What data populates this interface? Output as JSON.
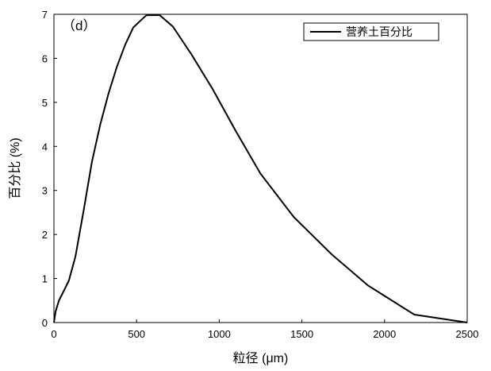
{
  "chart_data": {
    "type": "line",
    "panel_label": "（d）",
    "xlabel": "粒径 (μm)",
    "ylabel": "百分比 (%)",
    "xlim": [
      0,
      2500
    ],
    "ylim": [
      0,
      7
    ],
    "xticks": [
      0,
      500,
      1000,
      1500,
      2000,
      2500
    ],
    "yticks": [
      0,
      1,
      2,
      3,
      4,
      5,
      6,
      7
    ],
    "grid": false,
    "legend_position": "top-right",
    "series": [
      {
        "name": "营养土百分比",
        "color": "#000000",
        "x": [
          0,
          10,
          30,
          60,
          90,
          130,
          180,
          230,
          280,
          330,
          380,
          430,
          480,
          530,
          560,
          610,
          640,
          720,
          830,
          960,
          1100,
          1250,
          1450,
          1680,
          1900,
          2180,
          2500
        ],
        "y": [
          0,
          0.25,
          0.5,
          0.72,
          0.95,
          1.5,
          2.55,
          3.65,
          4.5,
          5.2,
          5.8,
          6.3,
          6.7,
          6.88,
          6.98,
          6.98,
          6.98,
          6.72,
          6.1,
          5.3,
          4.35,
          3.38,
          2.4,
          1.55,
          0.84,
          0.18,
          0.0
        ]
      }
    ]
  }
}
